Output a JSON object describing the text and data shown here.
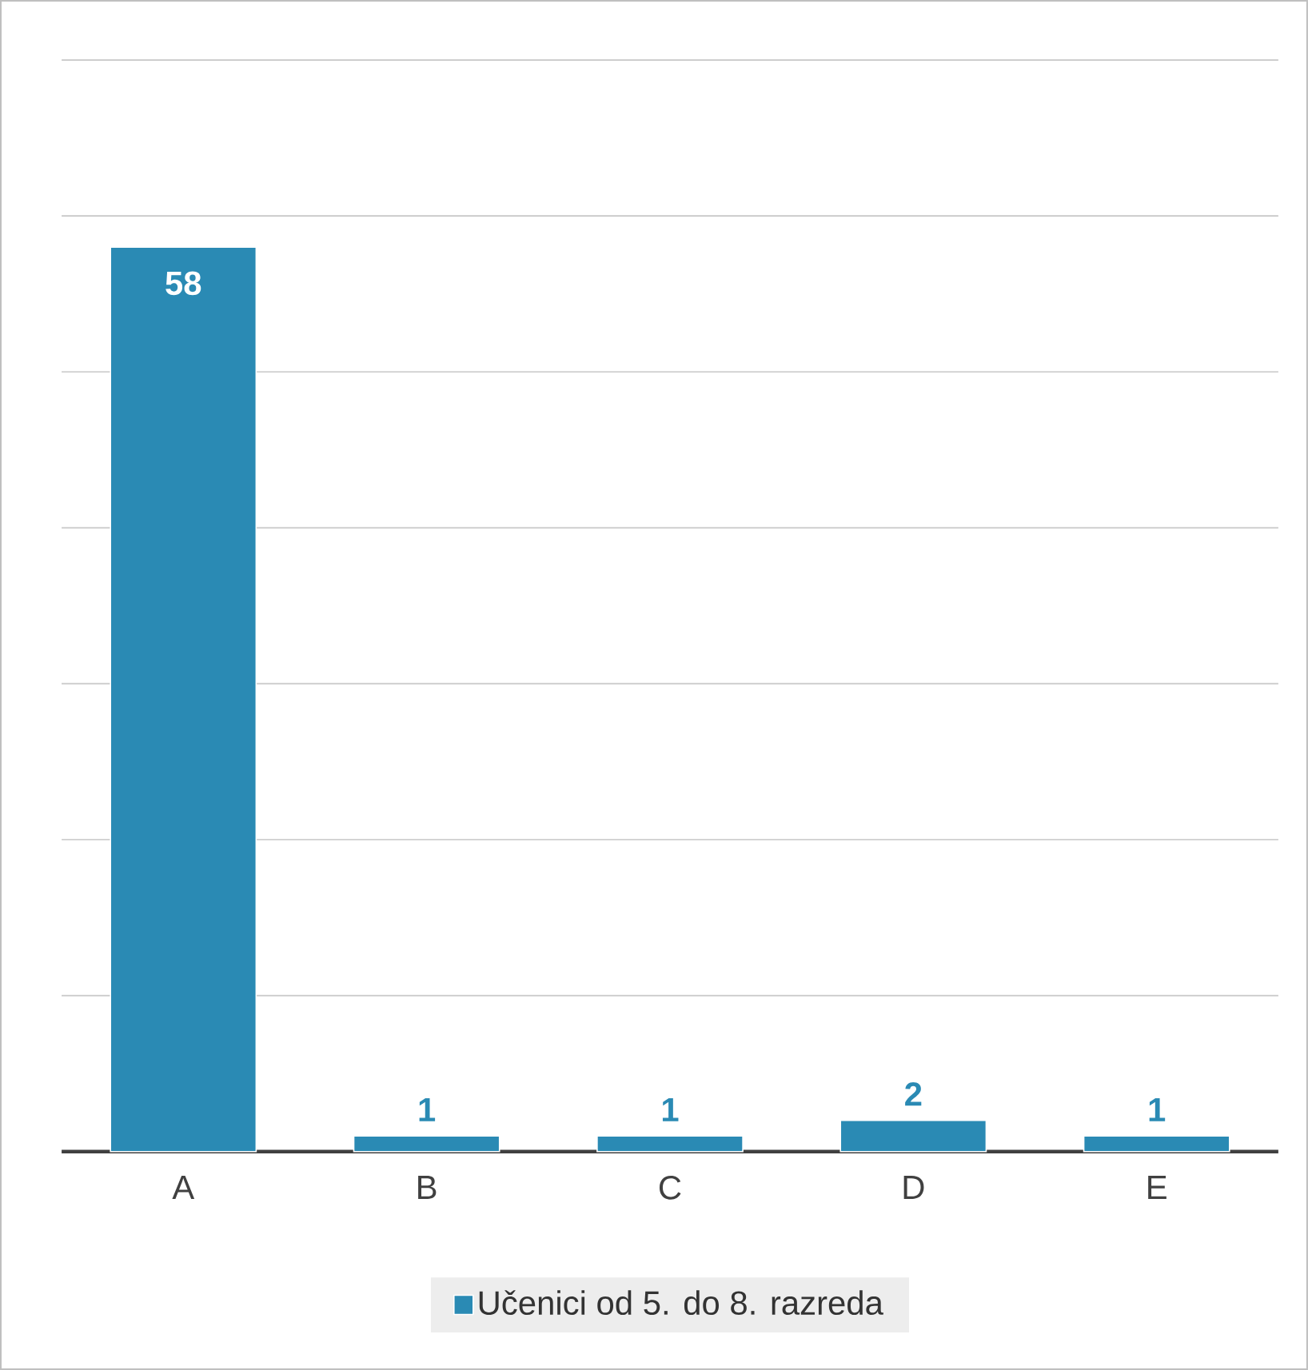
{
  "chart_data": {
    "type": "bar",
    "categories": [
      "A",
      "B",
      "C",
      "D",
      "E"
    ],
    "series": [
      {
        "name": "Učenici od 5. do 8. razreda",
        "color": "#2a8ab4",
        "values": [
          58,
          1,
          1,
          2,
          1
        ]
      }
    ],
    "ylim": [
      0,
      70
    ],
    "yticks": [
      {
        "value": 0,
        "label": null
      },
      {
        "value": 10,
        "label": null
      },
      {
        "value": 20,
        "label": null
      },
      {
        "value": 30,
        "label": null
      },
      {
        "value": 40,
        "label": null
      },
      {
        "value": 50,
        "label": null
      },
      {
        "value": 60,
        "label": null
      },
      {
        "value": 70,
        "label": null
      }
    ],
    "tick_labels": "x",
    "grid": "y",
    "legend": "bottom",
    "data_labels": true
  }
}
